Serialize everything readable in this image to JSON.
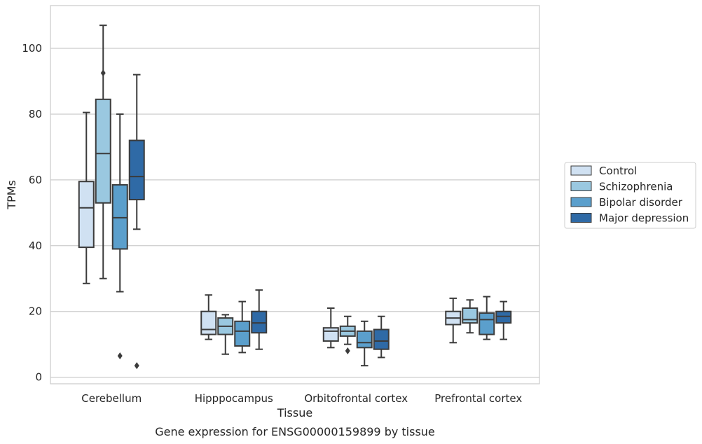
{
  "chart_data": {
    "type": "box",
    "title": "",
    "caption": "Gene expression for ENSG00000159899 by tissue",
    "xlabel": "Tissue",
    "ylabel": "TPMs",
    "ylim": [
      -2,
      113
    ],
    "yticks": [
      0,
      20,
      40,
      60,
      80,
      100
    ],
    "grid": "horizontal",
    "legend_position": "right",
    "categories": [
      "Cerebellum",
      "Hipppocampus",
      "Orbitofrontal cortex",
      "Prefrontal cortex"
    ],
    "series": [
      {
        "name": "Control",
        "color": "#d0e1f2",
        "boxes": [
          {
            "whisker_low": 28.5,
            "q1": 39.5,
            "median": 51.5,
            "q3": 59.5,
            "whisker_high": 80.5,
            "outliers": []
          },
          {
            "whisker_low": 11.5,
            "q1": 13.0,
            "median": 14.5,
            "q3": 20.0,
            "whisker_high": 25.0,
            "outliers": []
          },
          {
            "whisker_low": 9.0,
            "q1": 11.0,
            "median": 14.0,
            "q3": 15.0,
            "whisker_high": 21.0,
            "outliers": []
          },
          {
            "whisker_low": 10.5,
            "q1": 16.0,
            "median": 18.0,
            "q3": 20.0,
            "whisker_high": 24.0,
            "outliers": []
          }
        ]
      },
      {
        "name": "Schizophrenia",
        "color": "#9ac8e0",
        "boxes": [
          {
            "whisker_low": 30.0,
            "q1": 53.0,
            "median": 68.0,
            "q3": 84.5,
            "whisker_high": 107.0,
            "outliers": [
              92.5
            ]
          },
          {
            "whisker_low": 7.0,
            "q1": 13.0,
            "median": 15.5,
            "q3": 18.0,
            "whisker_high": 19.0,
            "outliers": []
          },
          {
            "whisker_low": 10.0,
            "q1": 12.5,
            "median": 14.0,
            "q3": 15.5,
            "whisker_high": 18.5,
            "outliers": [
              8.0
            ]
          },
          {
            "whisker_low": 13.5,
            "q1": 16.5,
            "median": 17.5,
            "q3": 21.0,
            "whisker_high": 23.5,
            "outliers": []
          }
        ]
      },
      {
        "name": "Bipolar disorder",
        "color": "#5b9fcc",
        "boxes": [
          {
            "whisker_low": 26.0,
            "q1": 39.0,
            "median": 48.5,
            "q3": 58.5,
            "whisker_high": 80.0,
            "outliers": [
              6.5
            ]
          },
          {
            "whisker_low": 7.5,
            "q1": 9.5,
            "median": 14.0,
            "q3": 17.0,
            "whisker_high": 23.0,
            "outliers": []
          },
          {
            "whisker_low": 3.5,
            "q1": 9.0,
            "median": 10.5,
            "q3": 14.0,
            "whisker_high": 17.0,
            "outliers": []
          },
          {
            "whisker_low": 11.5,
            "q1": 13.0,
            "median": 17.5,
            "q3": 19.5,
            "whisker_high": 24.5,
            "outliers": []
          }
        ]
      },
      {
        "name": "Major depression",
        "color": "#2f6aa6",
        "boxes": [
          {
            "whisker_low": 45.0,
            "q1": 54.0,
            "median": 61.0,
            "q3": 72.0,
            "whisker_high": 92.0,
            "outliers": [
              3.5
            ]
          },
          {
            "whisker_low": 8.5,
            "q1": 13.5,
            "median": 16.5,
            "q3": 20.0,
            "whisker_high": 26.5,
            "outliers": []
          },
          {
            "whisker_low": 6.0,
            "q1": 8.5,
            "median": 11.0,
            "q3": 14.5,
            "whisker_high": 18.5,
            "outliers": []
          },
          {
            "whisker_low": 11.5,
            "q1": 16.5,
            "median": 18.5,
            "q3": 20.0,
            "whisker_high": 23.0,
            "outliers": []
          }
        ]
      }
    ]
  }
}
